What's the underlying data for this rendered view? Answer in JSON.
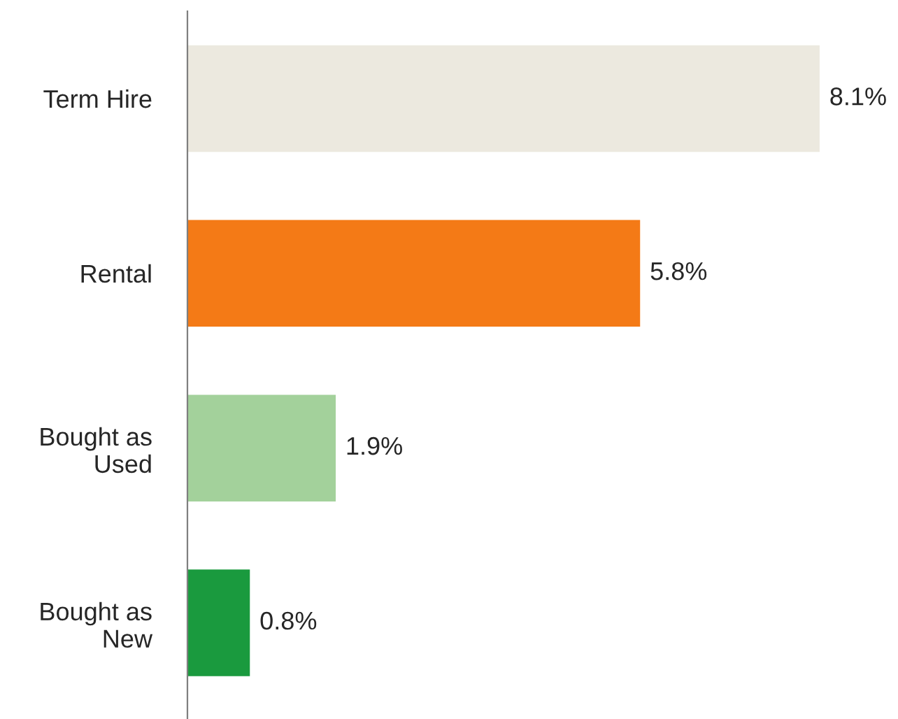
{
  "chart_data": {
    "type": "bar",
    "orientation": "horizontal",
    "categories": [
      "Term Hire",
      "Rental",
      "Bought as\nUsed",
      "Bought as\nNew"
    ],
    "values": [
      8.1,
      5.8,
      1.9,
      0.8
    ],
    "colors": [
      "#ece9df",
      "#f47a16",
      "#a3d19b",
      "#1a9a3e"
    ],
    "value_labels": [
      "8.1%",
      "5.8%",
      "1.9%",
      "0.8%"
    ],
    "grid": false,
    "legend": false
  }
}
